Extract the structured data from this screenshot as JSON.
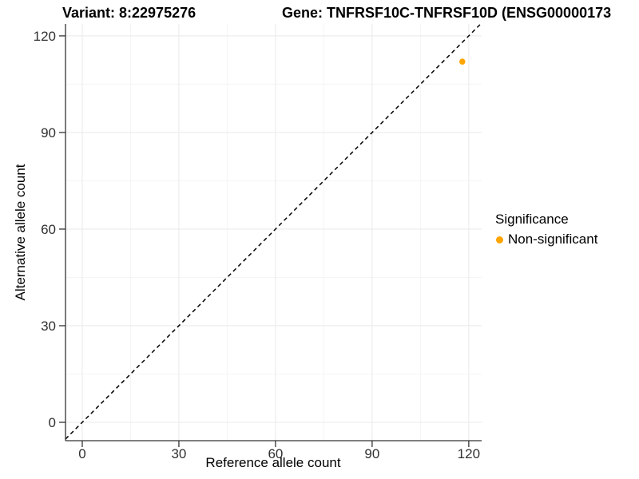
{
  "chart_data": {
    "type": "scatter",
    "titles": {
      "variant": "Variant: 8:22975276",
      "gene": "Gene: TNFRSF10C-TNFRSF10D (ENSG00000173"
    },
    "xlabel": "Reference allele count",
    "ylabel": "Alternative allele count",
    "xlim": [
      -5.2,
      124.0
    ],
    "ylim": [
      -5.7,
      123.7
    ],
    "x_ticks": [
      0,
      30,
      60,
      90,
      120
    ],
    "y_ticks": [
      0,
      30,
      60,
      90,
      120
    ],
    "x_minor_ticks": [
      15,
      45,
      75,
      105
    ],
    "y_minor_ticks": [
      15,
      45,
      75,
      105
    ],
    "points": [
      {
        "x": 118,
        "y": 112,
        "significance": "Non-significant",
        "color": "#FFA500"
      }
    ],
    "identity_line": {
      "slope": 1,
      "intercept": 0,
      "style": "dashed",
      "color": "#000000"
    },
    "legend": {
      "title": "Significance",
      "position": "right",
      "items": [
        {
          "label": "Non-significant",
          "color": "#FFA500"
        }
      ]
    },
    "style": {
      "background": "#FFFFFF",
      "major_grid_color": "#EBEBEB",
      "minor_grid_color": "#F5F5F5",
      "axis_line_color": "#333333",
      "tick_label_color": "#303030"
    }
  }
}
